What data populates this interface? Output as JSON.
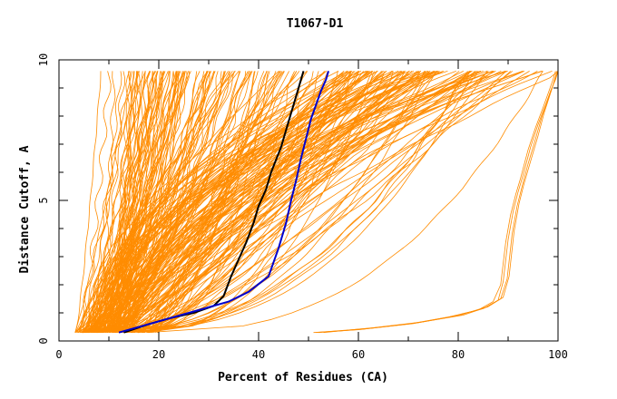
{
  "chart_data": {
    "type": "line",
    "title": "T1067-D1",
    "xlabel": "Percent of Residues (CA)",
    "ylabel": "Distance Cutoff, A",
    "xlim": [
      0,
      100
    ],
    "ylim": [
      0,
      10
    ],
    "xticks": [
      0,
      20,
      40,
      60,
      80,
      100
    ],
    "yticks": [
      0,
      5,
      10
    ],
    "grid": false,
    "legend": "none",
    "colors": {
      "background_models": "#ff8c00",
      "highlight_black": "#000000",
      "highlight_blue": "#0000cd"
    },
    "highlight_series": [
      {
        "color": "#000000",
        "x": [
          13,
          18,
          22,
          27,
          31,
          33,
          34.5,
          36,
          37.5,
          39,
          40,
          41.5,
          42.5,
          44.5,
          46,
          47.5,
          49
        ],
        "y": [
          0.3,
          0.6,
          0.8,
          1.0,
          1.25,
          1.6,
          2.3,
          2.9,
          3.5,
          4.2,
          4.8,
          5.4,
          6.0,
          6.9,
          7.8,
          8.7,
          9.6
        ]
      },
      {
        "color": "#0000cd",
        "x": [
          12,
          18,
          24,
          29,
          34,
          38,
          42,
          44,
          45.5,
          46.5,
          47.5,
          48.5,
          49.5,
          50.5,
          51.5,
          52.5,
          53.5,
          54
        ],
        "y": [
          0.3,
          0.6,
          0.9,
          1.15,
          1.4,
          1.75,
          2.3,
          3.3,
          4.2,
          5.0,
          5.7,
          6.5,
          7.2,
          7.9,
          8.4,
          8.9,
          9.3,
          9.6
        ]
      }
    ],
    "outlier_series": [
      {
        "x": [
          51,
          60,
          70,
          78,
          84,
          87,
          88.5,
          89.5,
          90.5,
          91.5,
          92.5,
          94,
          95.5,
          97,
          98,
          99,
          99.5
        ],
        "y": [
          0.3,
          0.4,
          0.6,
          0.85,
          1.1,
          1.4,
          2.0,
          3.5,
          4.5,
          5.2,
          5.8,
          6.8,
          7.6,
          8.3,
          8.8,
          9.3,
          9.6
        ]
      },
      {
        "x": [
          52,
          61,
          71,
          79,
          85,
          88,
          89,
          90,
          91,
          92,
          93,
          94.5,
          96,
          97.5,
          98.5,
          99.5,
          100
        ],
        "y": [
          0.3,
          0.42,
          0.62,
          0.88,
          1.15,
          1.45,
          2.1,
          3.6,
          4.6,
          5.3,
          5.9,
          6.9,
          7.7,
          8.4,
          8.9,
          9.3,
          9.6
        ]
      },
      {
        "x": [
          51.5,
          62,
          72,
          80,
          85.5,
          88.5,
          89.8,
          90.8,
          91.8,
          92.8,
          94,
          95.5,
          96.8,
          98,
          99,
          99.8
        ],
        "y": [
          0.3,
          0.45,
          0.65,
          0.9,
          1.2,
          1.5,
          2.2,
          3.8,
          4.8,
          5.5,
          6.3,
          7.2,
          8.0,
          8.6,
          9.1,
          9.6
        ]
      },
      {
        "x": [
          53,
          63,
          73,
          81,
          86,
          89,
          90.2,
          91.2,
          92.2,
          93.2,
          94.5,
          96,
          97.2,
          98.3,
          99.2,
          100
        ],
        "y": [
          0.3,
          0.47,
          0.68,
          0.92,
          1.22,
          1.55,
          2.3,
          3.9,
          4.9,
          5.6,
          6.4,
          7.3,
          8.1,
          8.7,
          9.2,
          9.6
        ]
      }
    ]
  }
}
